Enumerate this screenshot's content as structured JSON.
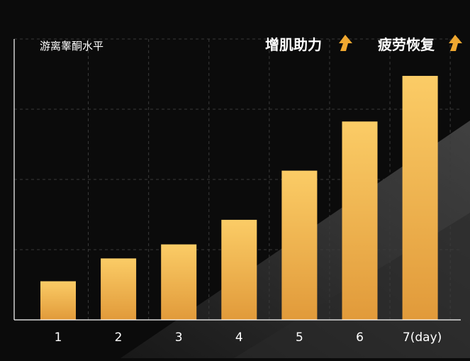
{
  "chart_data": {
    "type": "bar",
    "ylabel": "游离睾酮水平",
    "categories": [
      "1",
      "2",
      "3",
      "4",
      "5",
      "6",
      "7(day)"
    ],
    "values": [
      1.1,
      1.75,
      2.15,
      2.85,
      4.25,
      5.65,
      6.95
    ],
    "ylim": [
      0,
      8
    ],
    "grid": true,
    "annotations": [
      {
        "text": "增肌助力",
        "icon": "up-arrow-icon"
      },
      {
        "text": "疲劳恢复",
        "icon": "up-arrow-icon"
      }
    ]
  },
  "colors": {
    "background": "#0b0b0b",
    "bar_top": "#fbcc66",
    "bar_bottom": "#e19a3a",
    "arrow": "#f0a830",
    "text": "#ffffff",
    "grid": "#3a3a3a"
  }
}
